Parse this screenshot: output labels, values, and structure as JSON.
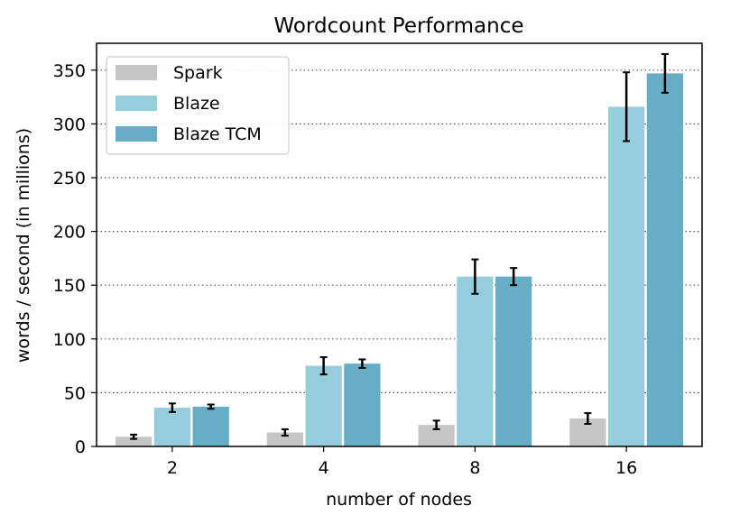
{
  "chart_data": {
    "type": "bar",
    "title": "Wordcount Performance",
    "xlabel": "number of nodes",
    "ylabel": "words / second (in millions)",
    "categories": [
      "2",
      "4",
      "8",
      "16"
    ],
    "ylim": [
      0,
      375
    ],
    "yticks": [
      0,
      50,
      100,
      150,
      200,
      250,
      300,
      350
    ],
    "grid": "y-dotted",
    "legend_position": "top-left",
    "series": [
      {
        "name": "Spark",
        "color": "#c6c6c6",
        "values": [
          9,
          13,
          20,
          26
        ],
        "errors": [
          2,
          3,
          4,
          5
        ]
      },
      {
        "name": "Blaze",
        "color": "#96cddc",
        "values": [
          36,
          75,
          158,
          316
        ],
        "errors": [
          4,
          8,
          16,
          32
        ]
      },
      {
        "name": "Blaze TCM",
        "color": "#68adc6",
        "values": [
          37,
          77,
          158,
          347
        ],
        "errors": [
          2,
          4,
          8,
          18
        ]
      }
    ]
  }
}
